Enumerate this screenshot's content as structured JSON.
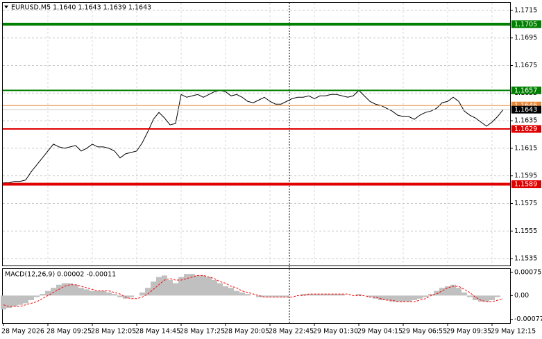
{
  "chart_data": [
    {
      "type": "line",
      "title": "EURUSD,M5 1.1640 1.1643 1.1639 1.1643",
      "categories": [
        "28 May 2026",
        null,
        null,
        null,
        null,
        null,
        null,
        null,
        "28 May 09:25",
        null,
        null,
        null,
        null,
        null,
        null,
        null,
        "28 May 12:05",
        null,
        null,
        null,
        null,
        null,
        null,
        null,
        "28 May 14:45",
        null,
        null,
        null,
        null,
        null,
        null,
        null,
        "28 May 17:25",
        null,
        null,
        null,
        null,
        null,
        null,
        null,
        "28 May 20:05",
        null,
        null,
        null,
        null,
        null,
        null,
        null,
        "28 May 22:45",
        null,
        null,
        null,
        null,
        null,
        null,
        null,
        "29 May 01:30",
        null,
        null,
        null,
        null,
        null,
        null,
        null,
        "29 May 04:15",
        null,
        null,
        null,
        null,
        null,
        null,
        null,
        "29 May 06:55",
        null,
        null,
        null,
        null,
        null,
        null,
        null,
        "29 May 09:35",
        null,
        null,
        null,
        null,
        null,
        null,
        null,
        "29 May 12:15",
        null,
        null
      ],
      "series": [
        {
          "color": "#000000",
          "values": [
            1.159,
            1.159,
            1.1591,
            1.1591,
            1.1592,
            1.1598,
            1.1603,
            1.1608,
            1.1613,
            1.1618,
            1.1616,
            1.1615,
            1.1616,
            1.1617,
            1.1613,
            1.1615,
            1.1618,
            1.1616,
            1.1616,
            1.1615,
            1.1613,
            1.1608,
            1.1611,
            1.1612,
            1.1613,
            1.1619,
            1.1627,
            1.1636,
            1.1641,
            1.1637,
            1.1632,
            1.1633,
            1.1654,
            1.1652,
            1.1653,
            1.1654,
            1.1652,
            1.1654,
            1.1656,
            1.1657,
            1.1656,
            1.1653,
            1.1654,
            1.1652,
            1.1649,
            1.1648,
            1.165,
            1.1652,
            1.1649,
            1.1647,
            1.1647,
            1.1649,
            1.1651,
            1.1652,
            1.1652,
            1.1653,
            1.1651,
            1.1653,
            1.1653,
            1.1654,
            1.1654,
            1.1653,
            1.1652,
            1.1653,
            1.1657,
            1.1653,
            1.1649,
            1.1647,
            1.1646,
            1.1644,
            1.1642,
            1.1639,
            1.1638,
            1.1638,
            1.1636,
            1.1639,
            1.1641,
            1.1642,
            1.1644,
            1.1648,
            1.1649,
            1.1652,
            1.1649,
            1.1642,
            1.1639,
            1.1637,
            1.1634,
            1.1631,
            1.1634,
            1.1638,
            1.1643
          ]
        }
      ],
      "ylim": [
        1.153,
        1.17205
      ],
      "yticks": [
        1.1715,
        1.1695,
        1.1675,
        1.1655,
        1.1635,
        1.1615,
        1.1595,
        1.1575,
        1.1555,
        1.1535
      ],
      "grid": true,
      "levels": [
        {
          "value": 1.1705,
          "color": "#008000",
          "tag_color": "#008000"
        },
        {
          "value": 1.1657,
          "color": "#008000",
          "tag_color": "#008000"
        },
        {
          "value": 1.1646,
          "color": "#e8893a",
          "tag_color": "#e8893a"
        },
        {
          "value": 1.1643,
          "color": "#c8c8c8",
          "tag_color": "#000000"
        },
        {
          "value": 1.1629,
          "color": "#e00000",
          "tag_color": "#e00000"
        },
        {
          "value": 1.1589,
          "color": "#e00000",
          "tag_color": "#e00000"
        }
      ]
    },
    {
      "type": "macd",
      "title": "MACD(12,26,9) 0.00002 -0.00011",
      "series": [
        {
          "type": "bar",
          "color": "#c0c0c0",
          "values": [
            -0.00045,
            -0.0004,
            -0.00035,
            -0.0003,
            -0.00025,
            -0.00015,
            -5e-05,
            5e-05,
            0.00015,
            0.00025,
            0.00035,
            0.0004,
            0.0004,
            0.00035,
            0.00025,
            0.0002,
            0.00015,
            0.00015,
            0.00015,
            0.0001,
            5e-05,
            -5e-05,
            -0.0001,
            -5e-05,
            0,
            0.0001,
            0.00025,
            0.00045,
            0.0006,
            0.00065,
            0.0005,
            0.0004,
            0.0006,
            0.0007,
            0.0007,
            0.00065,
            0.00065,
            0.0006,
            0.0005,
            0.0004,
            0.0003,
            0.00025,
            0.00015,
            0.0001,
            5e-05,
            0,
            -5e-05,
            -5e-05,
            -5e-05,
            -5e-05,
            -5e-05,
            -5e-05,
            0,
            0,
            5e-05,
            5e-05,
            5e-05,
            5e-05,
            5e-05,
            5e-05,
            5e-05,
            5e-05,
            0,
            0,
            5e-05,
            0,
            -5e-05,
            -0.0001,
            -0.00015,
            -0.00015,
            -0.0002,
            -0.0002,
            -0.0002,
            -0.0002,
            -0.00015,
            -0.0001,
            -5e-05,
            5e-05,
            0.00015,
            0.00025,
            0.0003,
            0.00035,
            0.00025,
            0.0001,
            -5e-05,
            -0.00015,
            -0.0002,
            -0.0002,
            -0.00015,
            -5e-05,
            0
          ]
        },
        {
          "type": "line",
          "color": "#ff0000",
          "values": [
            -0.0003,
            -0.00035,
            -0.00035,
            -0.00035,
            -0.0003,
            -0.00025,
            -0.0002,
            -0.0001,
            0,
            0.0001,
            0.0002,
            0.0003,
            0.00035,
            0.00035,
            0.0003,
            0.00025,
            0.0002,
            0.00015,
            0.00015,
            0.00015,
            0.0001,
            5e-05,
            -5e-05,
            -0.0001,
            -0.0001,
            -5e-05,
            5e-05,
            0.0002,
            0.00035,
            0.0005,
            0.00055,
            0.0005,
            0.0005,
            0.00055,
            0.0006,
            0.00065,
            0.00065,
            0.0006,
            0.00055,
            0.00045,
            0.0004,
            0.0003,
            0.00025,
            0.00015,
            0.0001,
            5e-05,
            0,
            -5e-05,
            -5e-05,
            -5e-05,
            -5e-05,
            -5e-05,
            -5e-05,
            0,
            0,
            5e-05,
            5e-05,
            5e-05,
            5e-05,
            5e-05,
            5e-05,
            5e-05,
            5e-05,
            0,
            0,
            0,
            -5e-05,
            -5e-05,
            -0.0001,
            -0.00015,
            -0.00015,
            -0.0002,
            -0.0002,
            -0.0002,
            -0.0002,
            -0.00015,
            -0.0001,
            0,
            5e-05,
            0.00015,
            0.00025,
            0.0003,
            0.0003,
            0.0002,
            0.0001,
            -5e-05,
            -0.00015,
            -0.0002,
            -0.0002,
            -0.00015,
            -0.0001
          ]
        }
      ],
      "ylim": [
        -0.00089,
        0.00086
      ],
      "yticks": [
        0.00075,
        {
          "value": 0,
          "label": "0.00"
        },
        -0.00077
      ]
    }
  ]
}
